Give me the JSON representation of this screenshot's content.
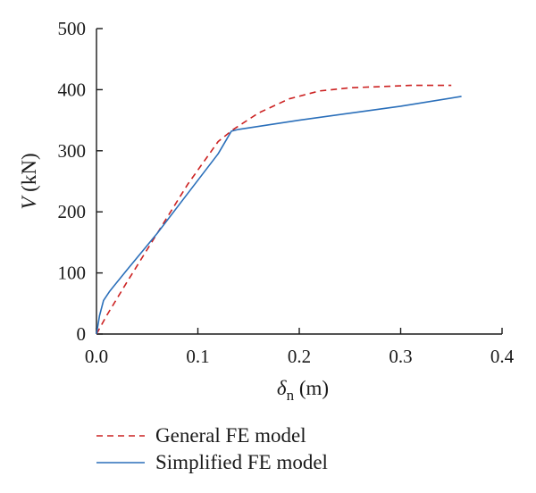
{
  "chart_data": {
    "type": "line",
    "title": "",
    "xlabel": {
      "symbol": "δ",
      "subscript": "n",
      "unit": " (m)"
    },
    "ylabel": {
      "symbol": "V",
      "unit": " (kN)"
    },
    "xlim": [
      0.0,
      0.4
    ],
    "ylim": [
      0,
      500
    ],
    "xticks": [
      {
        "value": 0.0,
        "label": "0.0"
      },
      {
        "value": 0.1,
        "label": "0.1"
      },
      {
        "value": 0.2,
        "label": "0.2"
      },
      {
        "value": 0.3,
        "label": "0.3"
      },
      {
        "value": 0.4,
        "label": "0.4"
      }
    ],
    "yticks": [
      {
        "value": 0,
        "label": "0"
      },
      {
        "value": 100,
        "label": "100"
      },
      {
        "value": 200,
        "label": "200"
      },
      {
        "value": 300,
        "label": "300"
      },
      {
        "value": 400,
        "label": "400"
      },
      {
        "value": 500,
        "label": "500"
      }
    ],
    "grid": false,
    "legend_position": "bottom",
    "series": [
      {
        "name": "General FE model",
        "color": "#cc2222",
        "dash": "dashed",
        "x": [
          0.0,
          0.01,
          0.03,
          0.06,
          0.09,
          0.12,
          0.135,
          0.16,
          0.19,
          0.22,
          0.25,
          0.28,
          0.31,
          0.35
        ],
        "y": [
          0,
          30,
          85,
          165,
          245,
          315,
          335,
          362,
          385,
          398,
          403,
          405,
          407,
          407
        ]
      },
      {
        "name": "Simplified FE model",
        "color": "#2a6fba",
        "dash": "solid",
        "x": [
          0.0,
          0.003,
          0.007,
          0.013,
          0.03,
          0.06,
          0.09,
          0.12,
          0.133,
          0.14,
          0.2,
          0.3,
          0.36
        ],
        "y": [
          0,
          30,
          55,
          70,
          105,
          165,
          230,
          295,
          332,
          335,
          350,
          373,
          389
        ]
      }
    ]
  }
}
